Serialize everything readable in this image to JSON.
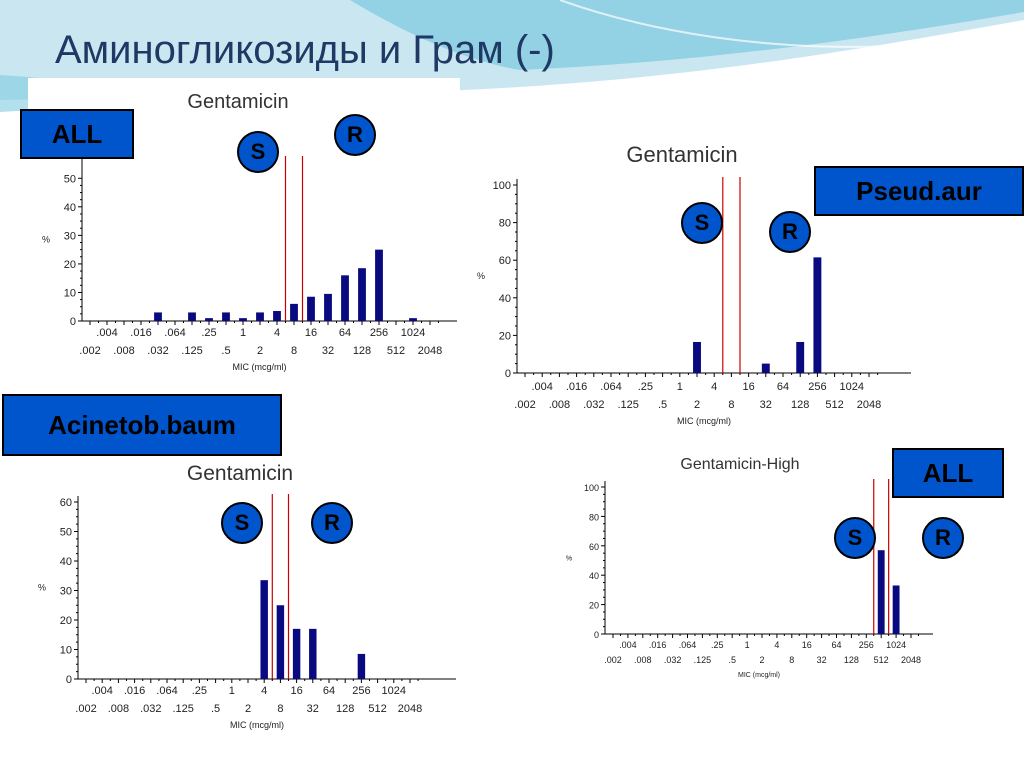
{
  "slide": {
    "title": "Аминогликозиды и Грам (-)"
  },
  "colors": {
    "bar": "#0a0a80",
    "breakpoint": "#cc0000",
    "tag": "#0055cc",
    "title": "#1f3864"
  },
  "x_tick_labels": [
    ".002",
    ".004",
    ".008",
    ".016",
    ".032",
    ".064",
    ".125",
    ".25",
    ".5",
    "1",
    "2",
    "4",
    "8",
    "16",
    "32",
    "64",
    "128",
    "256",
    "512",
    "1024",
    "2048"
  ],
  "charts": [
    {
      "id": "all",
      "tag": "ALL",
      "s_label": "S",
      "r_label": "R",
      "chart_data": {
        "type": "bar",
        "title": "Gentamicin",
        "xlabel": "MIC (mcg/ml)",
        "ylabel": "%",
        "ylim": [
          0,
          55
        ],
        "yticks": [
          0,
          10,
          20,
          30,
          40,
          50
        ],
        "categories": [
          ".002",
          ".004",
          ".008",
          ".016",
          ".032",
          ".064",
          ".125",
          ".25",
          ".5",
          "1",
          "2",
          "4",
          "8",
          "16",
          "32",
          "64",
          "128",
          "256",
          "512",
          "1024",
          "2048"
        ],
        "values": [
          0,
          0,
          0,
          0,
          3,
          0,
          3,
          1,
          3,
          1,
          3,
          3.5,
          6,
          8.5,
          9.5,
          16,
          18.5,
          25,
          0,
          1,
          0
        ],
        "breakpoints_at": [
          11.5,
          12.5
        ]
      }
    },
    {
      "id": "pseud",
      "tag": "Pseud.aur",
      "s_label": "S",
      "r_label": "R",
      "chart_data": {
        "type": "bar",
        "title": "Gentamicin",
        "xlabel": "MIC (mcg/ml)",
        "ylabel": "%",
        "ylim": [
          0,
          100
        ],
        "yticks": [
          0,
          20,
          40,
          60,
          80,
          100
        ],
        "categories": [
          ".002",
          ".004",
          ".008",
          ".016",
          ".032",
          ".064",
          ".125",
          ".25",
          ".5",
          "1",
          "2",
          "4",
          "8",
          "16",
          "32",
          "64",
          "128",
          "256",
          "512",
          "1024",
          "2048"
        ],
        "values": [
          0,
          0,
          0,
          0,
          0,
          0,
          0,
          0,
          0,
          0,
          16.5,
          0,
          0,
          0,
          5,
          0,
          16.5,
          61.5,
          0,
          0,
          0
        ],
        "breakpoints_at": [
          11.5,
          12.5
        ]
      }
    },
    {
      "id": "acinet",
      "tag": "Acinetob.baum",
      "s_label": "S",
      "r_label": "R",
      "chart_data": {
        "type": "bar",
        "title": "Gentamicin",
        "xlabel": "MIC (mcg/ml)",
        "ylabel": "%",
        "ylim": [
          0,
          60
        ],
        "yticks": [
          0,
          10,
          20,
          30,
          40,
          50,
          60
        ],
        "categories": [
          ".002",
          ".004",
          ".008",
          ".016",
          ".032",
          ".064",
          ".125",
          ".25",
          ".5",
          "1",
          "2",
          "4",
          "8",
          "16",
          "32",
          "64",
          "128",
          "256",
          "512",
          "1024",
          "2048"
        ],
        "values": [
          0,
          0,
          0,
          0,
          0,
          0,
          0,
          0,
          0,
          0,
          0,
          33.5,
          25,
          17,
          17,
          0,
          0,
          8.5,
          0,
          0,
          0
        ],
        "breakpoints_at": [
          11.5,
          12.5
        ]
      }
    },
    {
      "id": "high",
      "tag": "ALL",
      "s_label": "S",
      "r_label": "R",
      "chart_data": {
        "type": "bar",
        "title": "Gentamicin-High",
        "xlabel": "MIC (mcg/ml)",
        "ylabel": "%",
        "ylim": [
          0,
          100
        ],
        "yticks": [
          0,
          20,
          40,
          60,
          80,
          100
        ],
        "categories": [
          ".002",
          ".004",
          ".008",
          ".016",
          ".032",
          ".064",
          ".125",
          ".25",
          ".5",
          "1",
          "2",
          "4",
          "8",
          "16",
          "32",
          "64",
          "128",
          "256",
          "512",
          "1024",
          "2048"
        ],
        "values": [
          0,
          0,
          0,
          0,
          0,
          0,
          0,
          0,
          0,
          0,
          0,
          0,
          0,
          0,
          0,
          0,
          0,
          0,
          57,
          33,
          0
        ],
        "breakpoints_at": [
          17.5,
          18.5
        ]
      }
    }
  ]
}
